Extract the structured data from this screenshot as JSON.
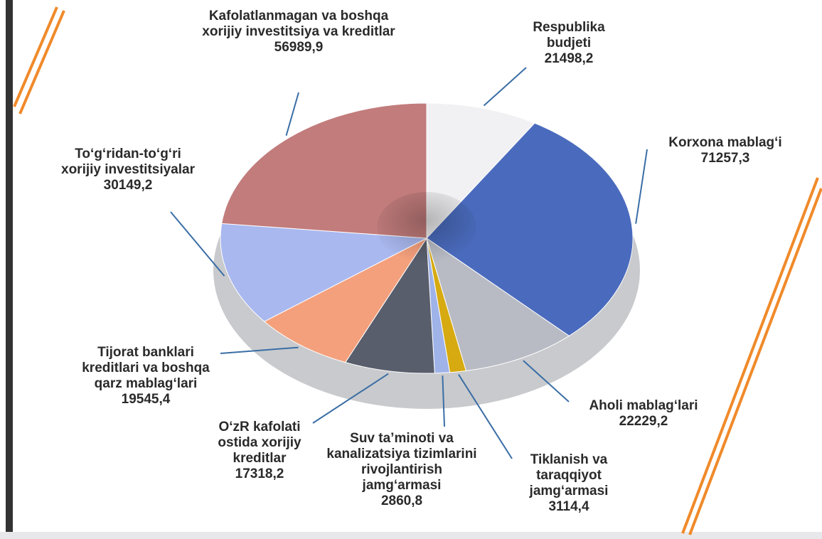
{
  "chart_data": {
    "type": "pie",
    "categories": [
      "Respublika budjeti",
      "Korxona mablag‘i",
      "Aholi mablag‘lari",
      "Tiklanish va taraqqiyot jamg‘armasi",
      "Suv ta’minoti va kanalizatsiya tizimlarini rivojlantirish jamg‘armasi",
      "O‘zR kafolati ostida xorijiy kreditlar",
      "Tijorat banklari kreditlari va boshqa qarz mablag‘lari",
      "To‘g‘ridan-to‘g‘ri xorijiy investitsiyalar",
      "Kafolatlanmagan va boshqa xorijiy investitsiya va kreditlar"
    ],
    "values": [
      21498.2,
      71257.3,
      22229.2,
      3114.4,
      2860.8,
      17318.2,
      19545.4,
      30149.2,
      56989.9
    ],
    "value_labels": [
      "21498,2",
      "71257,3",
      "22229,2",
      "3114,4",
      "2860,8",
      "17318,2",
      "19545,4",
      "30149,2",
      "56989,9"
    ],
    "colors": [
      "#f1f1f3",
      "#4a6bbd",
      "#b8bbc4",
      "#d6aa10",
      "#9fb3e8",
      "#595e6c",
      "#f4a07c",
      "#a9b8ef",
      "#c27c7c"
    ]
  }
}
